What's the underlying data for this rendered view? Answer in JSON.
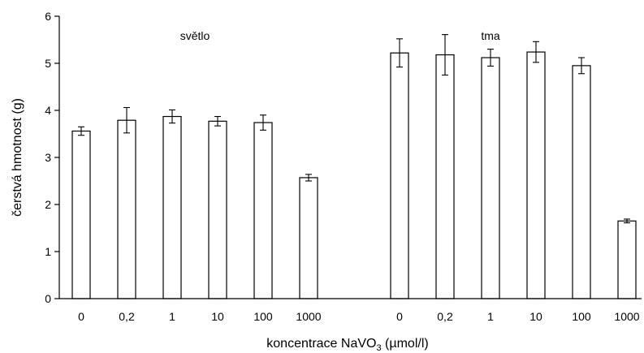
{
  "chart_data": {
    "type": "bar",
    "xlabel": "koncentrace NaVO",
    "xlabel_sub": "3",
    "xlabel_unit": " (µmol/l)",
    "ylabel": "čerstvá hmotnost (g)",
    "ylim": [
      0,
      6
    ],
    "yticks": [
      "0",
      "1",
      "2",
      "3",
      "4",
      "5",
      "6"
    ],
    "grid": false,
    "groups": [
      {
        "name": "světlo",
        "categories": [
          "0",
          "0,2",
          "1",
          "10",
          "100",
          "1000"
        ],
        "values": [
          3.56,
          3.79,
          3.87,
          3.77,
          3.74,
          2.57
        ],
        "errors": [
          0.09,
          0.27,
          0.14,
          0.1,
          0.16,
          0.07
        ]
      },
      {
        "name": "tma",
        "categories": [
          "0",
          "0,2",
          "1",
          "10",
          "100",
          "1000"
        ],
        "values": [
          5.22,
          5.18,
          5.12,
          5.24,
          4.95,
          1.65
        ],
        "errors": [
          0.3,
          0.43,
          0.18,
          0.22,
          0.17,
          0.04
        ]
      }
    ]
  }
}
